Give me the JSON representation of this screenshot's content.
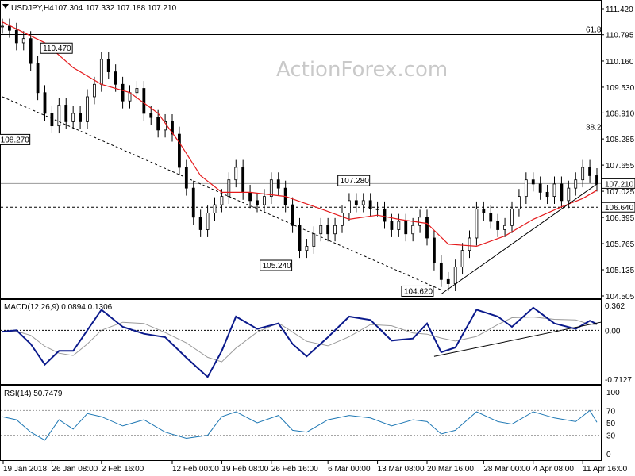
{
  "chart_data": [
    {
      "type": "candlestick",
      "symbol": "USDJPY,H4",
      "ohlc": [
        "107.304",
        "107.332",
        "107.188",
        "107.210"
      ],
      "watermark": "ActionForex.com",
      "price_axis_labels": [
        "111.420",
        "110.795",
        "110.160",
        "109.530",
        "108.910",
        "108.285",
        "107.655",
        "107.025",
        "106.395",
        "105.765",
        "105.135",
        "104.505"
      ],
      "current_price": "107.210",
      "support_price": "106.640",
      "time_labels": [
        "19 Jan 2018",
        "26 Jan 08:00",
        "2 Feb 16:00",
        "12 Feb 00:00",
        "19 Feb 08:00",
        "26 Feb 16:00",
        "6 Mar 00:00",
        "13 Mar 08:00",
        "20 Mar 16:00",
        "28 Mar 00:00",
        "4 Apr 08:00",
        "11 Apr 16:00"
      ],
      "fib_levels": [
        {
          "label": "61.8",
          "value": 110.8
        },
        {
          "label": "38.2",
          "value": 108.45
        }
      ],
      "pivot_labels": [
        {
          "text": "110.470",
          "value": 110.47
        },
        {
          "text": "108.270",
          "value": 108.27
        },
        {
          "text": "107.280",
          "value": 107.28
        },
        {
          "text": "105.240",
          "value": 105.24
        },
        {
          "text": "104.620",
          "value": 104.62
        }
      ],
      "close_path": [
        {
          "date": "2018-01-19",
          "c": 111.0
        },
        {
          "date": "2018-01-20",
          "c": 110.9
        },
        {
          "date": "2018-01-21",
          "c": 110.6
        },
        {
          "date": "2018-01-22",
          "c": 110.7
        },
        {
          "date": "2018-01-23",
          "c": 110.1
        },
        {
          "date": "2018-01-24",
          "c": 109.4
        },
        {
          "date": "2018-01-25",
          "c": 108.9
        },
        {
          "date": "2018-01-26",
          "c": 108.6
        },
        {
          "date": "2018-01-27",
          "c": 109.1
        },
        {
          "date": "2018-01-28",
          "c": 108.7
        },
        {
          "date": "2018-01-29",
          "c": 108.9
        },
        {
          "date": "2018-01-30",
          "c": 108.7
        },
        {
          "date": "2018-01-31",
          "c": 109.3
        },
        {
          "date": "2018-02-01",
          "c": 109.6
        },
        {
          "date": "2018-02-02",
          "c": 110.2
        },
        {
          "date": "2018-02-03",
          "c": 109.9
        },
        {
          "date": "2018-02-04",
          "c": 109.6
        },
        {
          "date": "2018-02-05",
          "c": 109.2
        },
        {
          "date": "2018-02-06",
          "c": 109.4
        },
        {
          "date": "2018-02-07",
          "c": 109.5
        },
        {
          "date": "2018-02-08",
          "c": 108.9
        },
        {
          "date": "2018-02-09",
          "c": 108.8
        },
        {
          "date": "2018-02-10",
          "c": 108.5
        },
        {
          "date": "2018-02-11",
          "c": 108.7
        },
        {
          "date": "2018-02-12",
          "c": 108.4
        },
        {
          "date": "2018-02-13",
          "c": 107.6
        },
        {
          "date": "2018-02-14",
          "c": 107.1
        },
        {
          "date": "2018-02-15",
          "c": 106.4
        },
        {
          "date": "2018-02-16",
          "c": 106.1
        },
        {
          "date": "2018-02-17",
          "c": 106.5
        },
        {
          "date": "2018-02-18",
          "c": 106.7
        },
        {
          "date": "2018-02-19",
          "c": 106.9
        },
        {
          "date": "2018-02-20",
          "c": 107.3
        },
        {
          "date": "2018-02-21",
          "c": 107.6
        },
        {
          "date": "2018-02-22",
          "c": 107.0
        },
        {
          "date": "2018-02-23",
          "c": 106.8
        },
        {
          "date": "2018-02-24",
          "c": 106.7
        },
        {
          "date": "2018-02-25",
          "c": 106.9
        },
        {
          "date": "2018-02-26",
          "c": 107.3
        },
        {
          "date": "2018-02-27",
          "c": 107.1
        },
        {
          "date": "2018-02-28",
          "c": 106.7
        },
        {
          "date": "2018-03-01",
          "c": 106.2
        },
        {
          "date": "2018-03-02",
          "c": 105.6
        },
        {
          "date": "2018-03-03",
          "c": 105.7
        },
        {
          "date": "2018-03-04",
          "c": 106.0
        },
        {
          "date": "2018-03-05",
          "c": 106.2
        },
        {
          "date": "2018-03-06",
          "c": 106.0
        },
        {
          "date": "2018-03-07",
          "c": 106.2
        },
        {
          "date": "2018-03-08",
          "c": 106.5
        },
        {
          "date": "2018-03-09",
          "c": 106.8
        },
        {
          "date": "2018-03-10",
          "c": 106.7
        },
        {
          "date": "2018-03-11",
          "c": 106.8
        },
        {
          "date": "2018-03-12",
          "c": 106.6
        },
        {
          "date": "2018-03-13",
          "c": 106.6
        },
        {
          "date": "2018-03-14",
          "c": 106.3
        },
        {
          "date": "2018-03-15",
          "c": 106.1
        },
        {
          "date": "2018-03-16",
          "c": 106.3
        },
        {
          "date": "2018-03-17",
          "c": 106.0
        },
        {
          "date": "2018-03-18",
          "c": 106.2
        },
        {
          "date": "2018-03-19",
          "c": 106.4
        },
        {
          "date": "2018-03-20",
          "c": 105.9
        },
        {
          "date": "2018-03-21",
          "c": 105.3
        },
        {
          "date": "2018-03-22",
          "c": 104.9
        },
        {
          "date": "2018-03-23",
          "c": 104.8
        },
        {
          "date": "2018-03-24",
          "c": 105.2
        },
        {
          "date": "2018-03-25",
          "c": 105.6
        },
        {
          "date": "2018-03-26",
          "c": 105.9
        },
        {
          "date": "2018-03-27",
          "c": 106.6
        },
        {
          "date": "2018-03-28",
          "c": 106.5
        },
        {
          "date": "2018-03-29",
          "c": 106.3
        },
        {
          "date": "2018-03-30",
          "c": 106.1
        },
        {
          "date": "2018-03-31",
          "c": 106.2
        },
        {
          "date": "2018-04-01",
          "c": 106.6
        },
        {
          "date": "2018-04-02",
          "c": 106.9
        },
        {
          "date": "2018-04-03",
          "c": 107.3
        },
        {
          "date": "2018-04-04",
          "c": 107.2
        },
        {
          "date": "2018-04-05",
          "c": 107.0
        },
        {
          "date": "2018-04-06",
          "c": 106.9
        },
        {
          "date": "2018-04-07",
          "c": 107.2
        },
        {
          "date": "2018-04-08",
          "c": 106.8
        },
        {
          "date": "2018-04-09",
          "c": 107.1
        },
        {
          "date": "2018-04-10",
          "c": 107.3
        },
        {
          "date": "2018-04-11",
          "c": 107.6
        },
        {
          "date": "2018-04-12",
          "c": 107.4
        },
        {
          "date": "2018-04-13",
          "c": 107.2
        }
      ],
      "ma_path": [
        {
          "date": "2018-01-19",
          "c": 111.1
        },
        {
          "date": "2018-01-25",
          "c": 110.6
        },
        {
          "date": "2018-01-29",
          "c": 110.0
        },
        {
          "date": "2018-02-02",
          "c": 109.6
        },
        {
          "date": "2018-02-06",
          "c": 109.4
        },
        {
          "date": "2018-02-10",
          "c": 108.9
        },
        {
          "date": "2018-02-13",
          "c": 108.2
        },
        {
          "date": "2018-02-16",
          "c": 107.4
        },
        {
          "date": "2018-02-19",
          "c": 107.0
        },
        {
          "date": "2018-02-23",
          "c": 107.0
        },
        {
          "date": "2018-02-28",
          "c": 106.9
        },
        {
          "date": "2018-03-05",
          "c": 106.6
        },
        {
          "date": "2018-03-09",
          "c": 106.35
        },
        {
          "date": "2018-03-13",
          "c": 106.45
        },
        {
          "date": "2018-03-16",
          "c": 106.35
        },
        {
          "date": "2018-03-20",
          "c": 106.25
        },
        {
          "date": "2018-03-23",
          "c": 105.75
        },
        {
          "date": "2018-03-27",
          "c": 105.7
        },
        {
          "date": "2018-03-31",
          "c": 105.95
        },
        {
          "date": "2018-04-04",
          "c": 106.35
        },
        {
          "date": "2018-04-08",
          "c": 106.65
        },
        {
          "date": "2018-04-11",
          "c": 106.85
        },
        {
          "date": "2018-04-13",
          "c": 107.05
        }
      ],
      "trendlines": [
        {
          "style": "dashed",
          "from": {
            "date": "2018-01-19",
            "value": 109.3
          },
          "to": {
            "date": "2018-03-22",
            "value": 104.65
          }
        },
        {
          "style": "solid",
          "from": {
            "date": "2018-03-22",
            "value": 104.55
          },
          "to": {
            "date": "2018-04-13",
            "value": 107.2
          }
        }
      ]
    },
    {
      "type": "line",
      "indicator": "MACD(12,26,9) 0.0894 0.1306",
      "axis_labels": [
        "0.362",
        "0.00",
        "-0.7127"
      ],
      "ylim": [
        -0.7127,
        0.362
      ],
      "macd_path": [
        {
          "date": "2018-01-19",
          "v": -0.02
        },
        {
          "date": "2018-01-21",
          "v": 0.0
        },
        {
          "date": "2018-01-23",
          "v": -0.2
        },
        {
          "date": "2018-01-25",
          "v": -0.5
        },
        {
          "date": "2018-01-27",
          "v": -0.3
        },
        {
          "date": "2018-01-29",
          "v": -0.3
        },
        {
          "date": "2018-01-31",
          "v": 0.0
        },
        {
          "date": "2018-02-02",
          "v": 0.3
        },
        {
          "date": "2018-02-05",
          "v": 0.05
        },
        {
          "date": "2018-02-08",
          "v": -0.05
        },
        {
          "date": "2018-02-11",
          "v": -0.1
        },
        {
          "date": "2018-02-14",
          "v": -0.4
        },
        {
          "date": "2018-02-17",
          "v": -0.68
        },
        {
          "date": "2018-02-19",
          "v": -0.3
        },
        {
          "date": "2018-02-21",
          "v": 0.2
        },
        {
          "date": "2018-02-24",
          "v": 0.02
        },
        {
          "date": "2018-02-27",
          "v": 0.1
        },
        {
          "date": "2018-03-01",
          "v": -0.2
        },
        {
          "date": "2018-03-03",
          "v": -0.38
        },
        {
          "date": "2018-03-06",
          "v": -0.1
        },
        {
          "date": "2018-03-09",
          "v": 0.2
        },
        {
          "date": "2018-03-12",
          "v": 0.15
        },
        {
          "date": "2018-03-15",
          "v": -0.15
        },
        {
          "date": "2018-03-18",
          "v": -0.12
        },
        {
          "date": "2018-03-20",
          "v": 0.1
        },
        {
          "date": "2018-03-22",
          "v": -0.32
        },
        {
          "date": "2018-03-24",
          "v": -0.25
        },
        {
          "date": "2018-03-27",
          "v": 0.3
        },
        {
          "date": "2018-03-30",
          "v": 0.2
        },
        {
          "date": "2018-04-01",
          "v": 0.05
        },
        {
          "date": "2018-04-04",
          "v": 0.33
        },
        {
          "date": "2018-04-07",
          "v": 0.1
        },
        {
          "date": "2018-04-10",
          "v": 0.02
        },
        {
          "date": "2018-04-12",
          "v": 0.14
        },
        {
          "date": "2018-04-13",
          "v": 0.09
        }
      ],
      "trendline": {
        "from": {
          "date": "2018-03-21",
          "value": -0.38
        },
        "to": {
          "date": "2018-04-13",
          "value": 0.12
        }
      }
    },
    {
      "type": "line",
      "indicator": "RSI(14) 50.7479",
      "axis_labels": [
        "100",
        "70",
        "50",
        "30",
        "0"
      ],
      "levels": [
        70,
        30
      ],
      "ylim": [
        0,
        100
      ],
      "rsi_path": [
        {
          "date": "2018-01-19",
          "v": 60
        },
        {
          "date": "2018-01-21",
          "v": 55
        },
        {
          "date": "2018-01-23",
          "v": 35
        },
        {
          "date": "2018-01-25",
          "v": 22
        },
        {
          "date": "2018-01-27",
          "v": 55
        },
        {
          "date": "2018-01-29",
          "v": 40
        },
        {
          "date": "2018-01-31",
          "v": 65
        },
        {
          "date": "2018-02-02",
          "v": 60
        },
        {
          "date": "2018-02-05",
          "v": 45
        },
        {
          "date": "2018-02-08",
          "v": 55
        },
        {
          "date": "2018-02-11",
          "v": 35
        },
        {
          "date": "2018-02-14",
          "v": 25
        },
        {
          "date": "2018-02-17",
          "v": 30
        },
        {
          "date": "2018-02-19",
          "v": 60
        },
        {
          "date": "2018-02-21",
          "v": 68
        },
        {
          "date": "2018-02-24",
          "v": 50
        },
        {
          "date": "2018-02-27",
          "v": 62
        },
        {
          "date": "2018-03-01",
          "v": 38
        },
        {
          "date": "2018-03-03",
          "v": 35
        },
        {
          "date": "2018-03-06",
          "v": 55
        },
        {
          "date": "2018-03-09",
          "v": 62
        },
        {
          "date": "2018-03-12",
          "v": 58
        },
        {
          "date": "2018-03-15",
          "v": 45
        },
        {
          "date": "2018-03-18",
          "v": 55
        },
        {
          "date": "2018-03-20",
          "v": 52
        },
        {
          "date": "2018-03-22",
          "v": 32
        },
        {
          "date": "2018-03-24",
          "v": 38
        },
        {
          "date": "2018-03-27",
          "v": 68
        },
        {
          "date": "2018-03-30",
          "v": 52
        },
        {
          "date": "2018-04-01",
          "v": 48
        },
        {
          "date": "2018-04-04",
          "v": 68
        },
        {
          "date": "2018-04-07",
          "v": 58
        },
        {
          "date": "2018-04-10",
          "v": 52
        },
        {
          "date": "2018-04-12",
          "v": 70
        },
        {
          "date": "2018-04-13",
          "v": 51
        }
      ]
    }
  ],
  "colors": {
    "price": "#000000",
    "ma": "#e41a1c",
    "macd": "#0b1a8c",
    "signal": "#9a9a9a",
    "rsi": "#1f78b4",
    "label_border": "#000000",
    "watermark": "#c9c9c9"
  }
}
